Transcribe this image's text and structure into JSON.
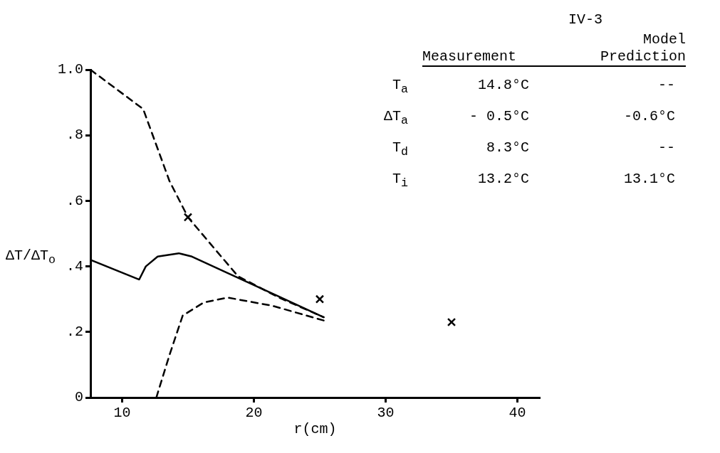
{
  "chart_data": {
    "type": "line",
    "title": "IV-3",
    "xlabel": "r(cm)",
    "ylabel": "ΔT/ΔT$_{o}$",
    "xlim": [
      7.6,
      41.7
    ],
    "xticks": [
      10,
      20,
      30,
      40
    ],
    "ylim": [
      0,
      1
    ],
    "yticks": [
      0,
      {
        "value": 0.2,
        "label": ".2"
      },
      {
        "value": 0.4,
        "label": ".4"
      },
      {
        "value": 0.6,
        "label": ".6"
      },
      {
        "value": 0.8,
        "label": ".8"
      },
      {
        "value": 1,
        "label": "1.0"
      }
    ],
    "grid": false,
    "legend": false,
    "series": [
      {
        "line_style": "solid",
        "color": "#000000",
        "x": [
          7.6,
          11.3,
          11.8,
          12.7,
          14.3,
          15.3,
          18.0,
          21.8,
          25.3
        ],
        "values": [
          0.42,
          0.36,
          0.4,
          0.43,
          0.44,
          0.43,
          0.38,
          0.31,
          0.245
        ]
      },
      {
        "line_style": "dashed",
        "color": "#000000",
        "x": [
          7.6,
          11.6,
          13.6,
          15.0,
          17.1,
          18.8,
          21.9,
          25.3
        ],
        "values": [
          1.0,
          0.88,
          0.66,
          0.55,
          0.45,
          0.37,
          0.305,
          0.245
        ]
      },
      {
        "line_style": "dashed",
        "color": "#000000",
        "x": [
          12.6,
          13.6,
          14.6,
          16.2,
          18.0,
          21.4,
          25.3
        ],
        "values": [
          0.0,
          0.13,
          0.25,
          0.29,
          0.305,
          0.28,
          0.235
        ]
      },
      {
        "type": "scatter",
        "marker": "cross",
        "color": "#000000",
        "x": [
          15,
          25,
          35
        ],
        "values": [
          0.55,
          0.3,
          0.23
        ]
      }
    ],
    "annotations": [
      "Measurement",
      "Model Prediction",
      "T$_{a}$",
      "14.8°C",
      "--",
      "ΔT$_{a}$",
      "- 0.5°C",
      "-0.6°C",
      "T$_{d}$",
      "8.3°C",
      "--",
      "T$_{i}$",
      "13.2°C",
      "13.1°C"
    ]
  }
}
